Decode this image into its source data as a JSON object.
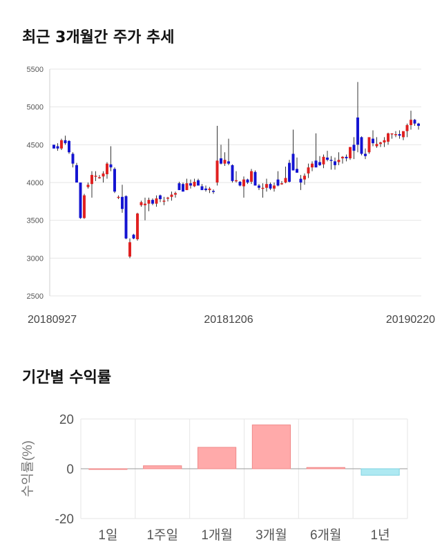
{
  "section1": {
    "title": "최근 3개월간 주가 추세"
  },
  "section2": {
    "title": "기간별 수익률"
  },
  "colors": {
    "up": "#e02020",
    "down": "#1414d2",
    "bar_positive": "#ffaaaa",
    "bar_negative": "#aee9f2",
    "grid": "#e6e6e6"
  },
  "chart_data": [
    {
      "type": "candlestick",
      "ylim": [
        2500,
        5500
      ],
      "yticks": [
        2500,
        3000,
        3500,
        4000,
        4500,
        5000,
        5500
      ],
      "xtick_labels": [
        "20180927",
        "20181206",
        "20190220"
      ],
      "xtick_index": [
        0,
        46,
        96
      ],
      "grid": true,
      "candles": [
        [
          4500,
          4500,
          4450,
          4450
        ],
        [
          4480,
          4520,
          4420,
          4450
        ],
        [
          4450,
          4580,
          4430,
          4560
        ],
        [
          4560,
          4620,
          4500,
          4520
        ],
        [
          4550,
          4560,
          4380,
          4400
        ],
        [
          4380,
          4400,
          4200,
          4250
        ],
        [
          4230,
          4260,
          4000,
          4000
        ],
        [
          4000,
          4000,
          3520,
          3530
        ],
        [
          3530,
          3850,
          3520,
          3830
        ],
        [
          3940,
          4000,
          3920,
          3970
        ],
        [
          3980,
          4150,
          3800,
          4100
        ],
        [
          4080,
          4150,
          4020,
          4090
        ],
        [
          4070,
          4100,
          4050,
          4070
        ],
        [
          4080,
          4150,
          4000,
          4120
        ],
        [
          4110,
          4270,
          4050,
          4250
        ],
        [
          4240,
          4480,
          4150,
          4200
        ],
        [
          4180,
          4200,
          3860,
          3880
        ],
        [
          3800,
          3830,
          3780,
          3810
        ],
        [
          3810,
          3970,
          3600,
          3650
        ],
        [
          3820,
          3830,
          3250,
          3260
        ],
        [
          3020,
          3260,
          3000,
          3210
        ],
        [
          3310,
          3320,
          3250,
          3260
        ],
        [
          3250,
          3600,
          3230,
          3590
        ],
        [
          3700,
          3760,
          3680,
          3740
        ],
        [
          3700,
          3800,
          3500,
          3720
        ],
        [
          3720,
          3800,
          3620,
          3770
        ],
        [
          3770,
          3790,
          3700,
          3720
        ],
        [
          3720,
          3830,
          3680,
          3790
        ],
        [
          3830,
          3840,
          3740,
          3780
        ],
        [
          3750,
          3810,
          3700,
          3760
        ],
        [
          3790,
          3810,
          3750,
          3800
        ],
        [
          3810,
          3880,
          3760,
          3840
        ],
        [
          3840,
          3880,
          3800,
          3860
        ],
        [
          3990,
          4010,
          3900,
          3900
        ],
        [
          3980,
          4000,
          3900,
          3880
        ],
        [
          3900,
          4050,
          3900,
          3990
        ],
        [
          3990,
          4040,
          3920,
          3960
        ],
        [
          3950,
          4050,
          3940,
          4010
        ],
        [
          4030,
          4050,
          3960,
          3960
        ],
        [
          3950,
          3980,
          3900,
          3900
        ],
        [
          3920,
          3960,
          3880,
          3900
        ],
        [
          3900,
          3940,
          3860,
          3920
        ],
        [
          3890,
          3910,
          3850,
          3880
        ],
        [
          4000,
          4750,
          3960,
          4290
        ],
        [
          4320,
          4500,
          4240,
          4250
        ],
        [
          4250,
          4400,
          4220,
          4300
        ],
        [
          4280,
          4580,
          4230,
          4250
        ],
        [
          4230,
          4240,
          4000,
          4020
        ],
        [
          4030,
          4150,
          4000,
          4030
        ],
        [
          4010,
          4020,
          3950,
          3960
        ],
        [
          3950,
          4080,
          3800,
          4040
        ],
        [
          4040,
          4050,
          3980,
          4000
        ],
        [
          4010,
          4180,
          3980,
          4150
        ],
        [
          4140,
          4160,
          3960,
          3960
        ],
        [
          3960,
          3980,
          3900,
          3930
        ],
        [
          3930,
          3990,
          3800,
          3930
        ],
        [
          3930,
          4050,
          3880,
          3980
        ],
        [
          3980,
          4000,
          3900,
          3920
        ],
        [
          3920,
          4000,
          3880,
          3960
        ],
        [
          4040,
          4150,
          3950,
          3960
        ],
        [
          3980,
          4020,
          3970,
          3990
        ],
        [
          4000,
          4210,
          3990,
          4060
        ],
        [
          4260,
          4300,
          4000,
          4010
        ],
        [
          4380,
          4700,
          4180,
          4160
        ],
        [
          4180,
          4330,
          4130,
          4130
        ],
        [
          4050,
          4100,
          3900,
          4000
        ],
        [
          4040,
          4120,
          3970,
          4090
        ],
        [
          4120,
          4250,
          4060,
          4200
        ],
        [
          4200,
          4280,
          4150,
          4250
        ],
        [
          4290,
          4650,
          4200,
          4200
        ],
        [
          4270,
          4350,
          4220,
          4230
        ],
        [
          4240,
          4370,
          4190,
          4340
        ],
        [
          4330,
          4420,
          4280,
          4300
        ],
        [
          4300,
          4350,
          4170,
          4290
        ],
        [
          4280,
          4330,
          4170,
          4230
        ],
        [
          4270,
          4400,
          4230,
          4300
        ],
        [
          4320,
          4350,
          4250,
          4340
        ],
        [
          4340,
          4370,
          4280,
          4320
        ],
        [
          4320,
          4440,
          4300,
          4470
        ],
        [
          4500,
          4600,
          4310,
          4420
        ],
        [
          4860,
          5330,
          4400,
          4500
        ],
        [
          4600,
          4610,
          4360,
          4380
        ],
        [
          4380,
          4450,
          4310,
          4350
        ],
        [
          4400,
          4590,
          4380,
          4600
        ],
        [
          4580,
          4690,
          4480,
          4520
        ],
        [
          4480,
          4600,
          4460,
          4510
        ],
        [
          4510,
          4540,
          4470,
          4530
        ],
        [
          4530,
          4600,
          4470,
          4560
        ],
        [
          4540,
          4660,
          4500,
          4650
        ],
        [
          4650,
          4650,
          4580,
          4650
        ],
        [
          4640,
          4680,
          4600,
          4640
        ],
        [
          4640,
          4690,
          4580,
          4620
        ],
        [
          4600,
          4660,
          4560,
          4680
        ],
        [
          4680,
          4780,
          4600,
          4760
        ],
        [
          4760,
          4950,
          4700,
          4830
        ],
        [
          4830,
          4840,
          4750,
          4780
        ],
        [
          4780,
          4790,
          4700,
          4750
        ]
      ]
    },
    {
      "type": "bar",
      "categories": [
        "1일",
        "1주일",
        "1개월",
        "3개월",
        "6개월",
        "1년"
      ],
      "values": [
        0,
        1.2,
        8.6,
        17.6,
        0.5,
        -2.6
      ],
      "ylabel": "수익률(%)",
      "ylim": [
        -20,
        20
      ],
      "yticks": [
        20,
        0,
        -20
      ],
      "grid": true
    }
  ]
}
